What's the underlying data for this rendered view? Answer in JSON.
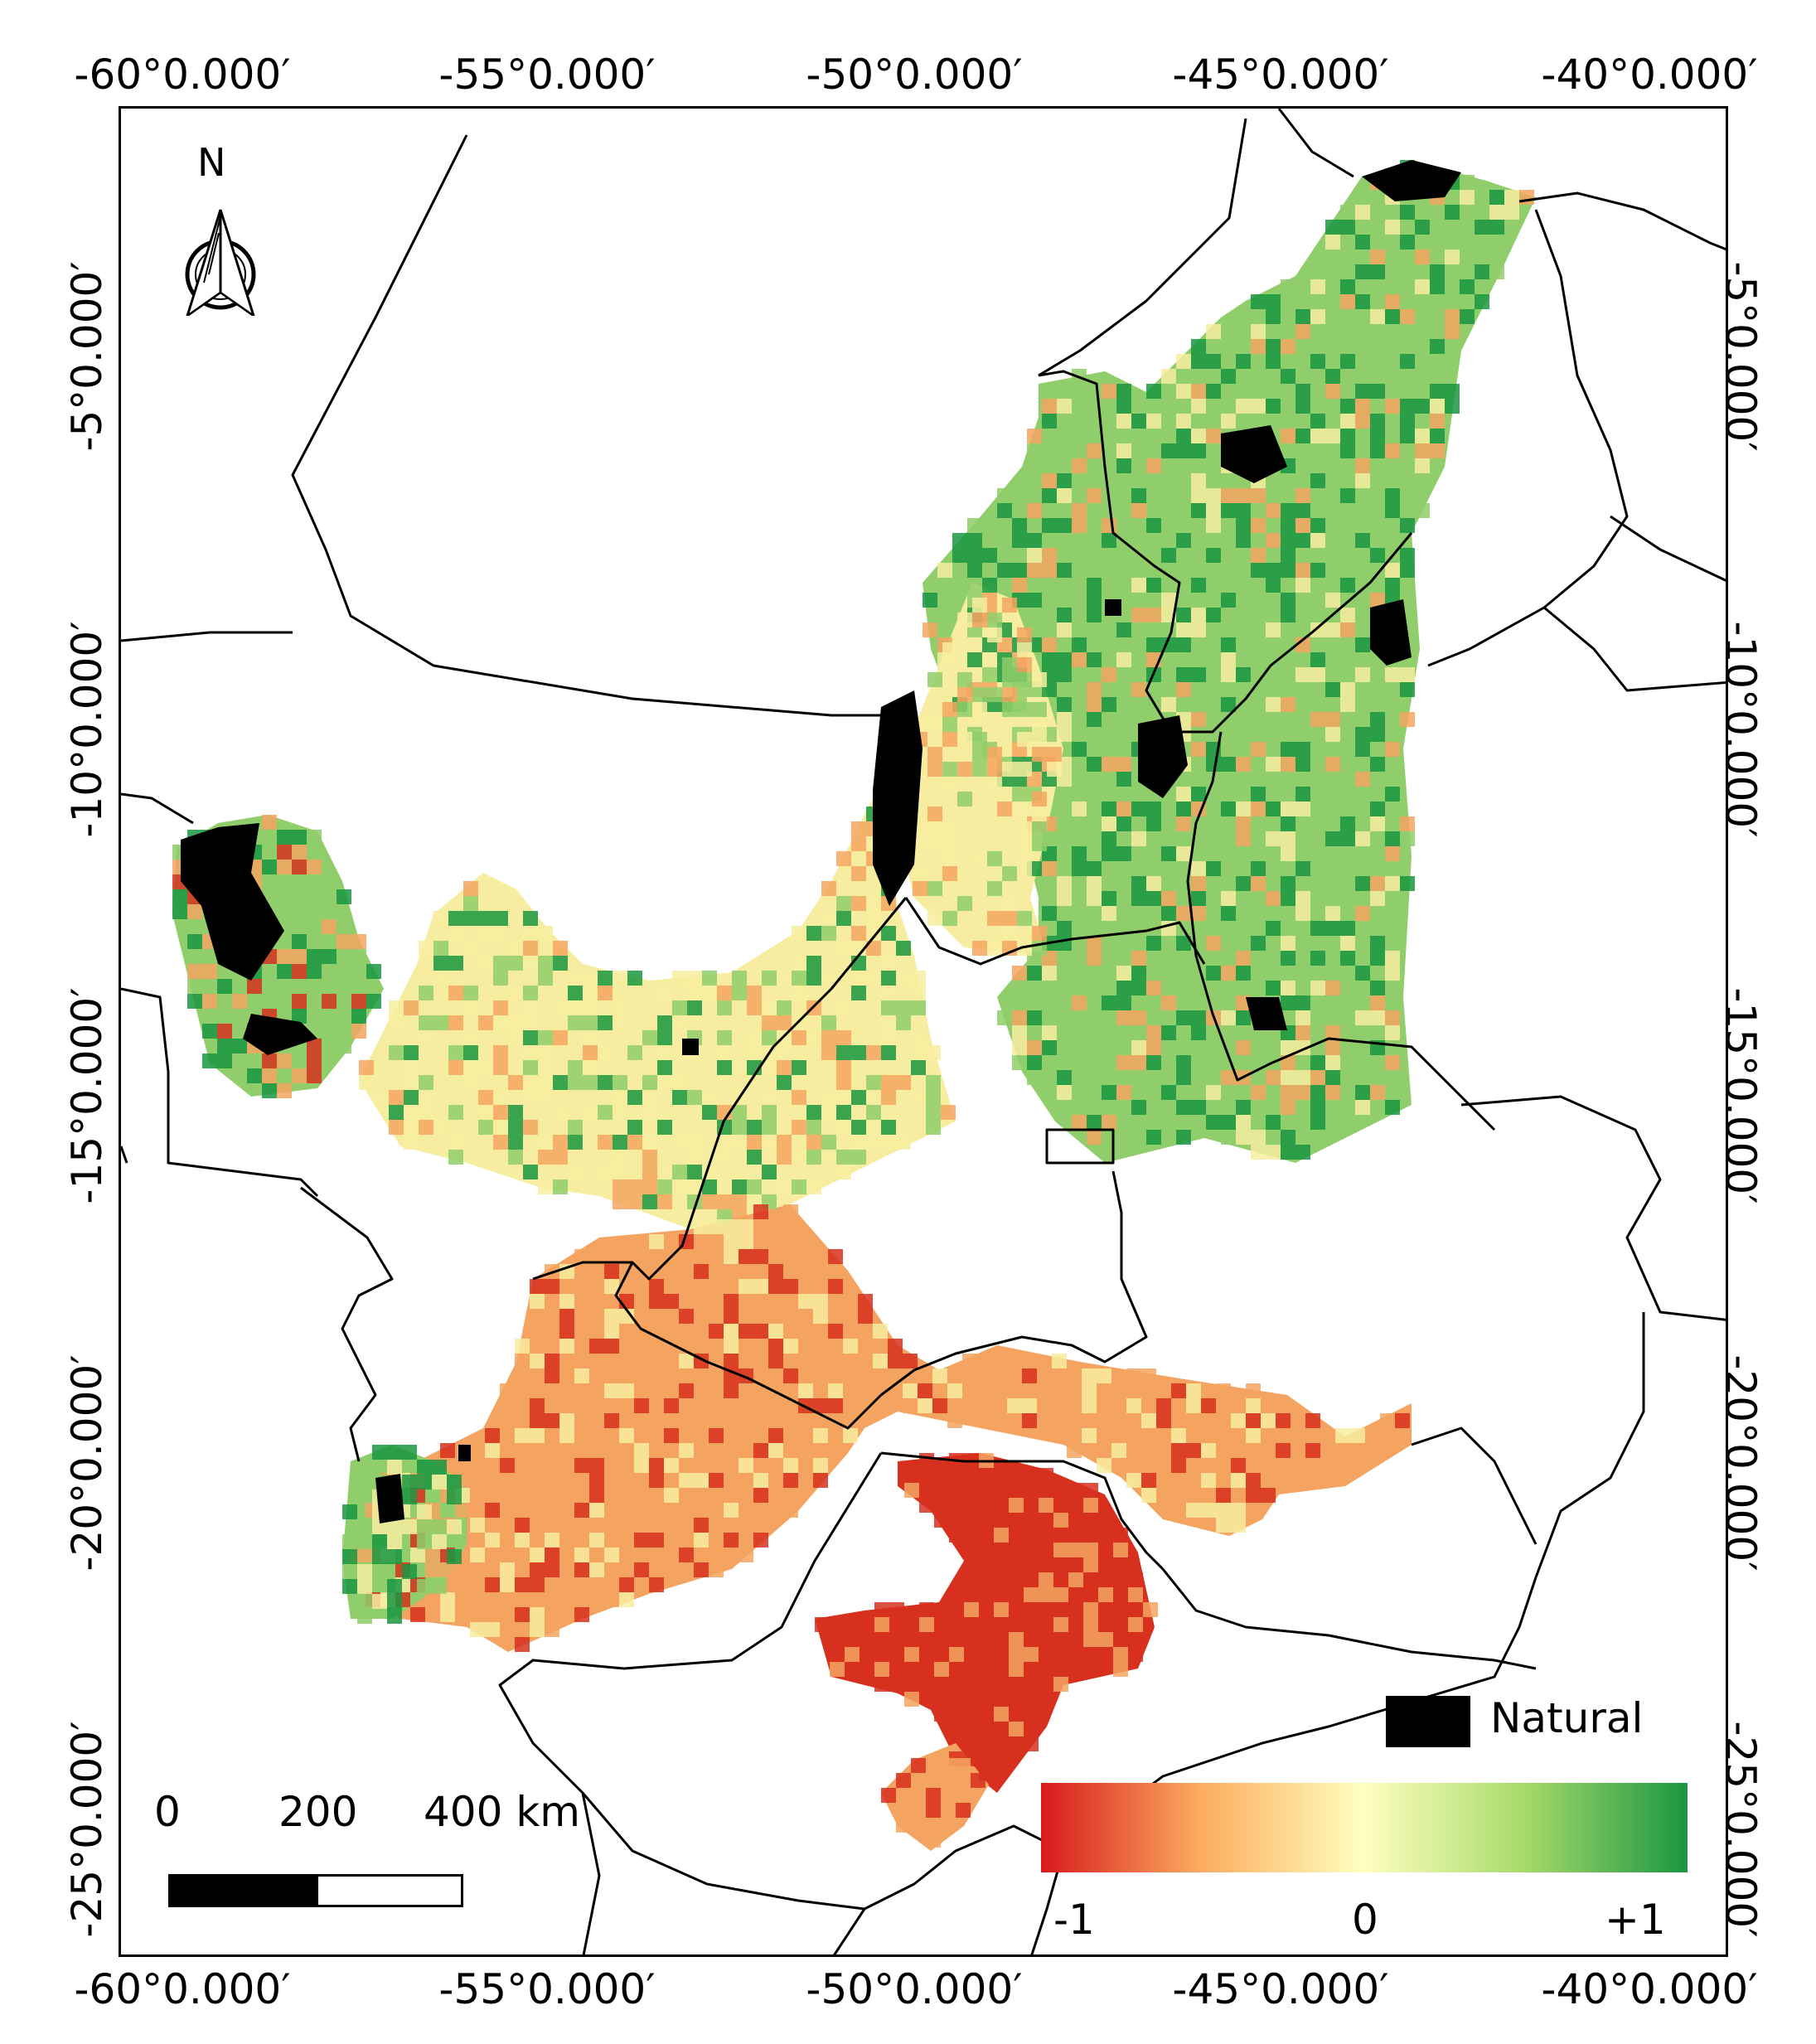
{
  "axes": {
    "top_labels": [
      "-60°0.000′",
      "-55°0.000′",
      "-50°0.000′",
      "-45°0.000′",
      "-40°0.000′"
    ],
    "bottom_labels": [
      "-60°0.000′",
      "-55°0.000′",
      "-50°0.000′",
      "-45°0.000′",
      "-40°0.000′"
    ],
    "left_labels": [
      "-5°0.000′",
      "-10°0.000′",
      "-15°0.000′",
      "-20°0.000′",
      "-25°0.000′"
    ],
    "right_labels": [
      "-5°0.000′",
      "-10°0.000′",
      "-15°0.000′",
      "-20°0.000′",
      "-25°0.000′"
    ]
  },
  "north_arrow": {
    "label": "N"
  },
  "scale_bar": {
    "labels": [
      "0",
      "200",
      "400 km"
    ]
  },
  "legend": {
    "natural_label": "Natural",
    "natural_color": "#000000",
    "colorbar_labels": [
      "-1",
      "0",
      "+1"
    ],
    "colorbar_colors": [
      "#d7191c",
      "#fdae61",
      "#ffffbf",
      "#a6d96a",
      "#1a9641"
    ]
  },
  "colors": {
    "strong_decline": "#d7301f",
    "decline": "#f4a460",
    "neutral": "#f7eda0",
    "gain": "#8fce6a",
    "strong_gain": "#1a9641",
    "natural": "#000000",
    "boundary": "#000000"
  }
}
